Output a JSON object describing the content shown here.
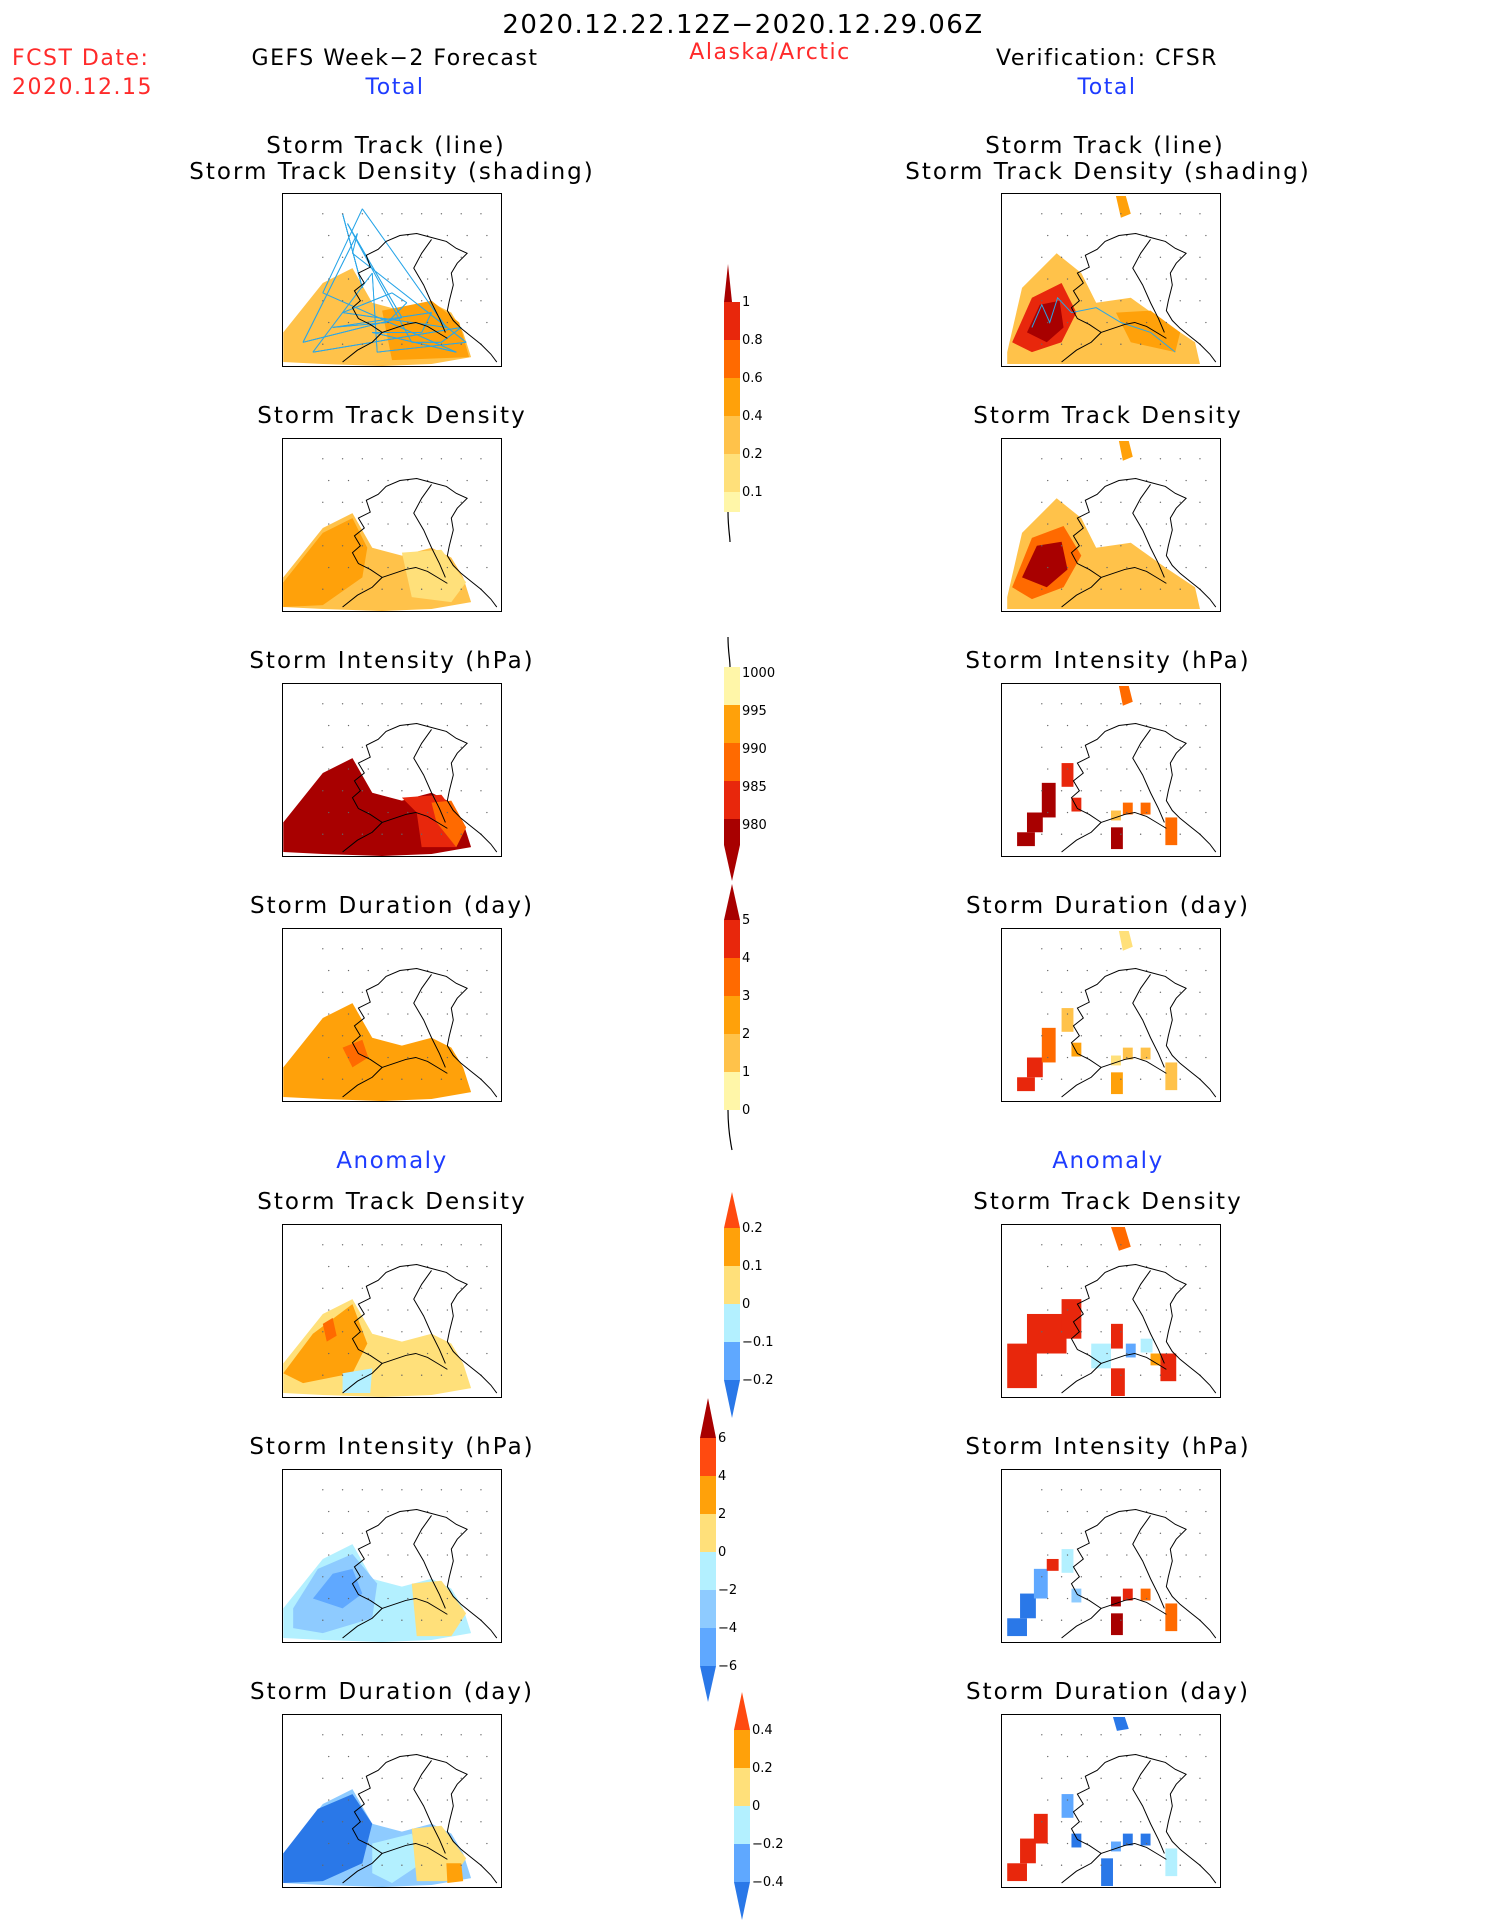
{
  "header": {
    "date_range": "2020.12.22.12Z−2020.12.29.06Z",
    "fcst_label": "FCST Date:",
    "fcst_date": "2020.12.15",
    "left_title": "GEFS Week−2 Forecast",
    "region": "Alaska/Arctic",
    "right_title": "Verification: CFSR",
    "total_left": "Total",
    "total_right": "Total",
    "anomaly_left": "Anomaly",
    "anomaly_right": "Anomaly"
  },
  "panels": {
    "track_line_l1": "Storm Track (line)",
    "track_line_l2": "Storm Track Density (shading)",
    "track_density": "Storm Track Density",
    "intensity": "Storm Intensity (hPa)",
    "duration": "Storm Duration (day)"
  },
  "colorbars": {
    "density": [
      "0.1",
      "0.2",
      "0.4",
      "0.6",
      "0.8",
      "1"
    ],
    "intensity": [
      "1000",
      "995",
      "990",
      "985",
      "980"
    ],
    "duration": [
      "0",
      "1",
      "2",
      "3",
      "4",
      "5"
    ],
    "anom_density": [
      "0.2",
      "0.1",
      "0",
      "−0.1",
      "−0.2"
    ],
    "anom_intensity": [
      "6",
      "4",
      "2",
      "0",
      "−2",
      "−4",
      "−6"
    ],
    "anom_duration": [
      "0.4",
      "0.2",
      "0",
      "−0.2",
      "−0.4"
    ]
  },
  "colors": {
    "c1": "#fff6a8",
    "c2": "#ffe07a",
    "c3": "#ffc24a",
    "c4": "#ffa10a",
    "c5": "#ff6a00",
    "c6": "#e8270c",
    "c7": "#a80000",
    "b1": "#b3f0ff",
    "b2": "#8ecbff",
    "b3": "#5fa8ff",
    "b4": "#2a78e8",
    "track": "#2aa6e8"
  }
}
